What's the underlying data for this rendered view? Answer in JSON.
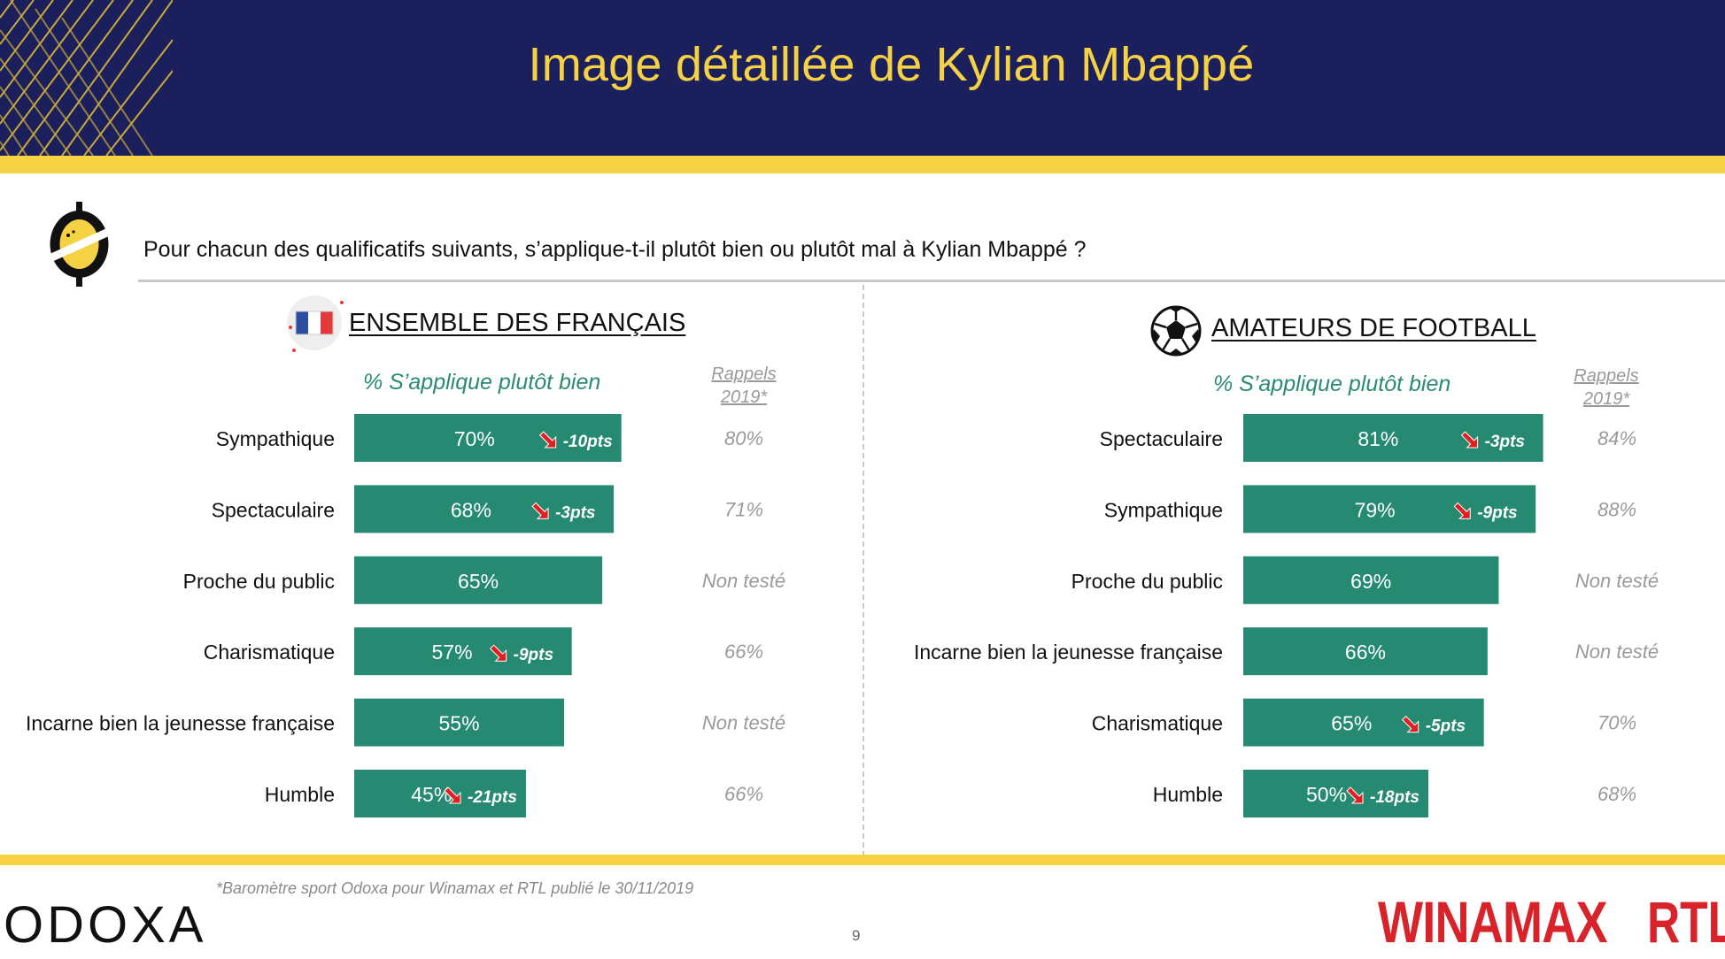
{
  "header": {
    "title": "Image détaillée de Kylian Mbappé"
  },
  "question": "Pour chacun des qualificatifs suivants, s’applique-t-il plutôt bien ou plutôt mal à Kylian Mbappé ?",
  "colors": {
    "header_bg": "#1b1f5c",
    "accent_yellow": "#f5d144",
    "bar": "#258a71",
    "subtitle": "#2a8a72",
    "delta_arrow": "#e02020",
    "recall_text": "#9a9a9a"
  },
  "left": {
    "title": "ENSEMBLE DES FRANÇAIS",
    "icon": "france-flag-icon",
    "subtitle": "% S’applique plutôt bien",
    "rappels_line1": "Rappels",
    "rappels_line2": "2019*"
  },
  "right": {
    "title": "AMATEURS DE FOOTBALL",
    "icon": "soccer-ball-icon",
    "subtitle": "% S’applique plutôt bien",
    "rappels_line1": "Rappels",
    "rappels_line2": "2019*"
  },
  "chart_data": [
    {
      "type": "bar",
      "orientation": "horizontal",
      "title": "ENSEMBLE DES FRANÇAIS",
      "subtitle": "% S’applique plutôt bien",
      "xlim": [
        0,
        100
      ],
      "categories": [
        "Sympathique",
        "Spectaculaire",
        "Proche du public",
        "Charismatique",
        "Incarne bien la jeunesse française",
        "Humble"
      ],
      "values": [
        70,
        68,
        65,
        57,
        55,
        45
      ],
      "value_labels": [
        "70%",
        "68%",
        "65%",
        "57%",
        "55%",
        "45%"
      ],
      "deltas": [
        "-10pts",
        "-3pts",
        "",
        "-9pts",
        "",
        "-21pts"
      ],
      "recalls_header": "Rappels 2019*",
      "recalls": [
        "80%",
        "71%",
        "Non testé",
        "66%",
        "Non testé",
        "66%"
      ]
    },
    {
      "type": "bar",
      "orientation": "horizontal",
      "title": "AMATEURS DE FOOTBALL",
      "subtitle": "% S’applique plutôt bien",
      "xlim": [
        0,
        100
      ],
      "categories": [
        "Spectaculaire",
        "Sympathique",
        "Proche du public",
        "Incarne bien la jeunesse française",
        "Charismatique",
        "Humble"
      ],
      "values": [
        81,
        79,
        69,
        66,
        65,
        50
      ],
      "value_labels": [
        "81%",
        "79%",
        "69%",
        "66%",
        "65%",
        "50%"
      ],
      "deltas": [
        "-3pts",
        "-9pts",
        "",
        "",
        "-5pts",
        "-18pts"
      ],
      "recalls_header": "Rappels 2019*",
      "recalls": [
        "84%",
        "88%",
        "Non testé",
        "Non testé",
        "70%",
        "68%"
      ]
    }
  ],
  "footer": {
    "footnote": "*Baromètre sport Odoxa pour Winamax et RTL publié le 30/11/2019",
    "page_number": "9",
    "logo_left": "ODOXA",
    "logo_winamax": "WINAMAX",
    "logo_rtl": "RTL"
  }
}
